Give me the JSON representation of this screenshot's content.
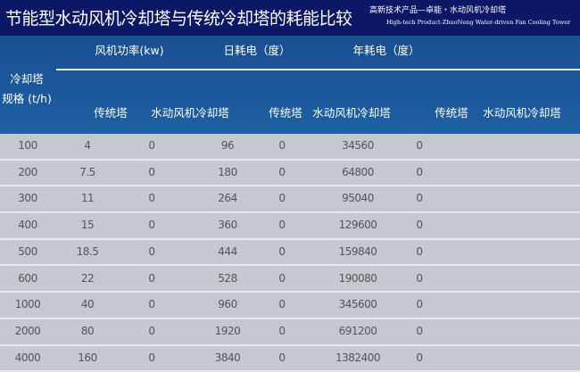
{
  "header": {
    "title": "节能型水动风机冷却塔与传统冷却塔的耗能比较",
    "subtitle_cn": "高新技术产品—卓能・水动风机冷却塔",
    "subtitle_en": "High-tech Product-ZhuoNeng Water-driven Fan Cooling Tower"
  },
  "table": {
    "spec_label_1": "冷却塔",
    "spec_label_2": "规格 (t/h)",
    "groups": [
      "风机功率(kw)",
      "日耗电（度）",
      "年耗电（度）"
    ],
    "subheaders": [
      "传统塔",
      "水动风机冷却塔",
      "传统塔",
      "水动风机冷却塔",
      "传统塔",
      "水动风机冷却塔"
    ],
    "rows": [
      [
        "100",
        "4",
        "0",
        "96",
        "0",
        "34560",
        "0"
      ],
      [
        "200",
        "7.5",
        "0",
        "180",
        "0",
        "64800",
        "0"
      ],
      [
        "300",
        "11",
        "0",
        "264",
        "0",
        "95040",
        "0"
      ],
      [
        "400",
        "15",
        "0",
        "360",
        "0",
        "129600",
        "0"
      ],
      [
        "500",
        "18.5",
        "0",
        "444",
        "0",
        "159840",
        "0"
      ],
      [
        "600",
        "22",
        "0",
        "528",
        "0",
        "190080",
        "0"
      ],
      [
        "1000",
        "40",
        "0",
        "960",
        "0",
        "345600",
        "0"
      ],
      [
        "2000",
        "80",
        "0",
        "1920",
        "0",
        "691200",
        "0"
      ],
      [
        "4000",
        "160",
        "0",
        "3840",
        "0",
        "1382400",
        "0"
      ]
    ]
  },
  "colors": {
    "title_bar": "#0c1766",
    "header_bg": "#1e5fa2",
    "row_bg": "#c4c8cf"
  }
}
